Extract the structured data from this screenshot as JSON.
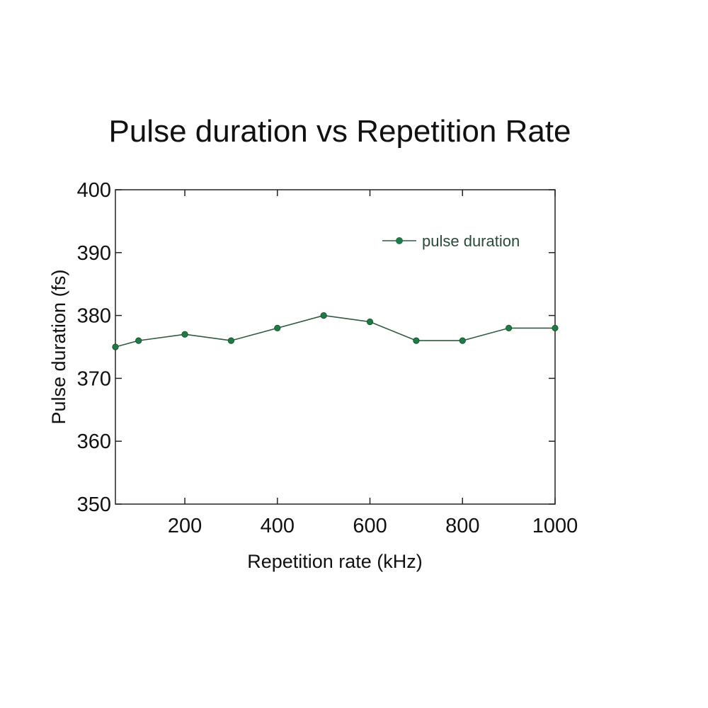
{
  "chart_data": {
    "type": "line",
    "title": "Pulse duration vs Repetition Rate",
    "xlabel": "Repetition rate (kHz)",
    "ylabel": "Pulse duration (fs)",
    "xlim": [
      50,
      1000
    ],
    "ylim": [
      350,
      400
    ],
    "xticks": [
      200,
      400,
      600,
      800,
      1000
    ],
    "yticks": [
      350,
      360,
      370,
      380,
      390,
      400
    ],
    "x_tick_labels": [
      "200",
      "400",
      "600",
      "800",
      "1000"
    ],
    "y_tick_labels": [
      "350",
      "360",
      "370",
      "380",
      "390",
      "400"
    ],
    "grid": false,
    "legend_position": "top-right",
    "series": [
      {
        "name": "pulse duration",
        "color": "#1f7a45",
        "x": [
          50,
          100,
          200,
          300,
          400,
          500,
          600,
          700,
          800,
          900,
          1000
        ],
        "y": [
          375,
          376,
          377,
          376,
          378,
          380,
          379,
          376,
          376,
          378,
          378
        ]
      }
    ]
  }
}
